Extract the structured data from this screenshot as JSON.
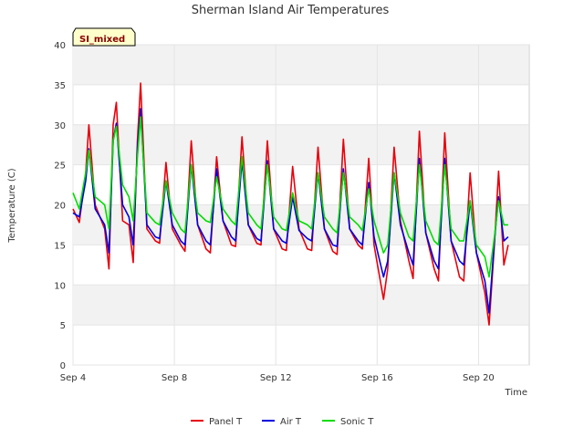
{
  "chart_data": {
    "type": "line",
    "title": "Sherman Island Air Temperatures",
    "xlabel": "Time",
    "ylabel": "Temperature (C)",
    "ylim": [
      0,
      40
    ],
    "yticks": [
      0,
      5,
      10,
      15,
      20,
      25,
      30,
      35,
      40
    ],
    "xlim": [
      "2023-09-04",
      "2023-09-22"
    ],
    "xticks": [
      {
        "date": "2023-09-04",
        "label": "Sep 4"
      },
      {
        "date": "2023-09-08",
        "label": "Sep 8"
      },
      {
        "date": "2023-09-12",
        "label": "Sep 12"
      },
      {
        "date": "2023-09-16",
        "label": "Sep 16"
      },
      {
        "date": "2023-09-20",
        "label": "Sep 20"
      }
    ],
    "grid": true,
    "legend_position": "bottom",
    "badge": "SI_mixed",
    "series": [
      {
        "name": "Panel T",
        "color": "#e8000b",
        "points": [
          [
            "2023-09-04 00:00",
            19.5
          ],
          [
            "2023-09-04 06:00",
            17.8
          ],
          [
            "2023-09-04 12:00",
            24.0
          ],
          [
            "2023-09-04 15:00",
            30.0
          ],
          [
            "2023-09-04 21:00",
            20.0
          ],
          [
            "2023-09-05 06:00",
            17.0
          ],
          [
            "2023-09-05 10:00",
            12.0
          ],
          [
            "2023-09-05 14:00",
            30.0
          ],
          [
            "2023-09-05 17:00",
            32.8
          ],
          [
            "2023-09-05 23:00",
            18.0
          ],
          [
            "2023-09-06 05:00",
            17.5
          ],
          [
            "2023-09-06 09:00",
            12.8
          ],
          [
            "2023-09-06 13:00",
            28.0
          ],
          [
            "2023-09-06 16:00",
            35.2
          ],
          [
            "2023-09-06 22:00",
            17.0
          ],
          [
            "2023-09-07 06:00",
            15.5
          ],
          [
            "2023-09-07 10:00",
            15.2
          ],
          [
            "2023-09-07 16:00",
            25.3
          ],
          [
            "2023-09-07 22:00",
            17.0
          ],
          [
            "2023-09-08 06:00",
            15.0
          ],
          [
            "2023-09-08 10:00",
            14.2
          ],
          [
            "2023-09-08 16:00",
            28.0
          ],
          [
            "2023-09-08 22:00",
            17.5
          ],
          [
            "2023-09-09 06:00",
            14.5
          ],
          [
            "2023-09-09 10:00",
            14.0
          ],
          [
            "2023-09-09 16:00",
            26.0
          ],
          [
            "2023-09-09 22:00",
            18.0
          ],
          [
            "2023-09-10 06:00",
            15.0
          ],
          [
            "2023-09-10 10:00",
            14.8
          ],
          [
            "2023-09-10 16:00",
            28.5
          ],
          [
            "2023-09-10 22:00",
            17.5
          ],
          [
            "2023-09-11 06:00",
            15.2
          ],
          [
            "2023-09-11 10:00",
            15.0
          ],
          [
            "2023-09-11 16:00",
            28.0
          ],
          [
            "2023-09-11 22:00",
            17.0
          ],
          [
            "2023-09-12 06:00",
            14.5
          ],
          [
            "2023-09-12 10:00",
            14.3
          ],
          [
            "2023-09-12 16:00",
            24.8
          ],
          [
            "2023-09-12 22:00",
            17.0
          ],
          [
            "2023-09-13 06:00",
            14.5
          ],
          [
            "2023-09-13 10:00",
            14.3
          ],
          [
            "2023-09-13 16:00",
            27.2
          ],
          [
            "2023-09-13 22:00",
            17.0
          ],
          [
            "2023-09-14 06:00",
            14.2
          ],
          [
            "2023-09-14 10:00",
            13.8
          ],
          [
            "2023-09-14 16:00",
            28.2
          ],
          [
            "2023-09-14 22:00",
            17.0
          ],
          [
            "2023-09-15 06:00",
            15.0
          ],
          [
            "2023-09-15 10:00",
            14.5
          ],
          [
            "2023-09-15 16:00",
            25.8
          ],
          [
            "2023-09-15 21:00",
            15.0
          ],
          [
            "2023-09-16 06:00",
            8.2
          ],
          [
            "2023-09-16 10:00",
            12.0
          ],
          [
            "2023-09-16 16:00",
            27.2
          ],
          [
            "2023-09-16 22:00",
            18.0
          ],
          [
            "2023-09-17 06:00",
            13.0
          ],
          [
            "2023-09-17 10:00",
            10.8
          ],
          [
            "2023-09-17 16:00",
            29.2
          ],
          [
            "2023-09-17 22:00",
            16.5
          ],
          [
            "2023-09-18 06:00",
            12.0
          ],
          [
            "2023-09-18 10:00",
            10.5
          ],
          [
            "2023-09-18 16:00",
            29.0
          ],
          [
            "2023-09-18 22:00",
            15.5
          ],
          [
            "2023-09-19 06:00",
            11.0
          ],
          [
            "2023-09-19 10:00",
            10.5
          ],
          [
            "2023-09-19 16:00",
            24.0
          ],
          [
            "2023-09-19 22:00",
            14.0
          ],
          [
            "2023-09-20 06:00",
            9.0
          ],
          [
            "2023-09-20 10:00",
            5.0
          ],
          [
            "2023-09-20 15:00",
            15.0
          ],
          [
            "2023-09-20 19:00",
            24.2
          ],
          [
            "2023-09-21 00:00",
            12.5
          ],
          [
            "2023-09-21 04:00",
            15.0
          ]
        ]
      },
      {
        "name": "Air T",
        "color": "#0000e0",
        "points": [
          [
            "2023-09-04 00:00",
            19.0
          ],
          [
            "2023-09-04 06:00",
            18.5
          ],
          [
            "2023-09-04 12:00",
            23.0
          ],
          [
            "2023-09-04 15:00",
            27.0
          ],
          [
            "2023-09-04 21:00",
            19.5
          ],
          [
            "2023-09-05 06:00",
            17.5
          ],
          [
            "2023-09-05 10:00",
            14.0
          ],
          [
            "2023-09-05 14:00",
            28.0
          ],
          [
            "2023-09-05 17:00",
            30.2
          ],
          [
            "2023-09-05 23:00",
            20.0
          ],
          [
            "2023-09-06 05:00",
            18.5
          ],
          [
            "2023-09-06 09:00",
            15.0
          ],
          [
            "2023-09-06 13:00",
            27.0
          ],
          [
            "2023-09-06 16:00",
            32.0
          ],
          [
            "2023-09-06 22:00",
            17.5
          ],
          [
            "2023-09-07 06:00",
            16.0
          ],
          [
            "2023-09-07 10:00",
            15.8
          ],
          [
            "2023-09-07 16:00",
            23.0
          ],
          [
            "2023-09-07 22:00",
            17.5
          ],
          [
            "2023-09-08 06:00",
            15.5
          ],
          [
            "2023-09-08 10:00",
            15.0
          ],
          [
            "2023-09-08 16:00",
            25.0
          ],
          [
            "2023-09-08 22:00",
            17.5
          ],
          [
            "2023-09-09 06:00",
            15.5
          ],
          [
            "2023-09-09 10:00",
            15.0
          ],
          [
            "2023-09-09 16:00",
            24.5
          ],
          [
            "2023-09-09 22:00",
            18.0
          ],
          [
            "2023-09-10 06:00",
            16.0
          ],
          [
            "2023-09-10 10:00",
            15.5
          ],
          [
            "2023-09-10 16:00",
            25.5
          ],
          [
            "2023-09-10 22:00",
            17.5
          ],
          [
            "2023-09-11 06:00",
            15.8
          ],
          [
            "2023-09-11 10:00",
            15.5
          ],
          [
            "2023-09-11 16:00",
            25.5
          ],
          [
            "2023-09-11 22:00",
            17.0
          ],
          [
            "2023-09-12 06:00",
            15.5
          ],
          [
            "2023-09-12 10:00",
            15.2
          ],
          [
            "2023-09-12 16:00",
            21.0
          ],
          [
            "2023-09-12 22:00",
            16.8
          ],
          [
            "2023-09-13 06:00",
            15.8
          ],
          [
            "2023-09-13 10:00",
            15.5
          ],
          [
            "2023-09-13 16:00",
            24.0
          ],
          [
            "2023-09-13 22:00",
            17.0
          ],
          [
            "2023-09-14 06:00",
            15.0
          ],
          [
            "2023-09-14 10:00",
            14.8
          ],
          [
            "2023-09-14 16:00",
            24.5
          ],
          [
            "2023-09-14 22:00",
            17.0
          ],
          [
            "2023-09-15 06:00",
            15.5
          ],
          [
            "2023-09-15 10:00",
            15.0
          ],
          [
            "2023-09-15 16:00",
            22.8
          ],
          [
            "2023-09-15 21:00",
            16.0
          ],
          [
            "2023-09-16 06:00",
            11.0
          ],
          [
            "2023-09-16 10:00",
            13.0
          ],
          [
            "2023-09-16 16:00",
            24.0
          ],
          [
            "2023-09-16 22:00",
            17.5
          ],
          [
            "2023-09-17 06:00",
            14.0
          ],
          [
            "2023-09-17 10:00",
            12.5
          ],
          [
            "2023-09-17 16:00",
            25.8
          ],
          [
            "2023-09-17 22:00",
            16.5
          ],
          [
            "2023-09-18 06:00",
            13.0
          ],
          [
            "2023-09-18 10:00",
            12.0
          ],
          [
            "2023-09-18 16:00",
            25.8
          ],
          [
            "2023-09-18 22:00",
            15.5
          ],
          [
            "2023-09-19 06:00",
            13.0
          ],
          [
            "2023-09-19 10:00",
            12.5
          ],
          [
            "2023-09-19 16:00",
            20.5
          ],
          [
            "2023-09-19 22:00",
            14.0
          ],
          [
            "2023-09-20 06:00",
            10.5
          ],
          [
            "2023-09-20 10:00",
            6.5
          ],
          [
            "2023-09-20 15:00",
            15.5
          ],
          [
            "2023-09-20 19:00",
            21.0
          ],
          [
            "2023-09-21 00:00",
            15.5
          ],
          [
            "2023-09-21 04:00",
            16.0
          ]
        ]
      },
      {
        "name": "Sonic T",
        "color": "#00dd00",
        "points": [
          [
            "2023-09-04 00:00",
            21.5
          ],
          [
            "2023-09-04 06:00",
            19.5
          ],
          [
            "2023-09-04 12:00",
            24.0
          ],
          [
            "2023-09-04 15:00",
            26.8
          ],
          [
            "2023-09-04 21:00",
            21.0
          ],
          [
            "2023-09-05 06:00",
            20.0
          ],
          [
            "2023-09-05 10:00",
            17.0
          ],
          [
            "2023-09-05 14:00",
            28.0
          ],
          [
            "2023-09-05 17:00",
            29.8
          ],
          [
            "2023-09-05 23:00",
            22.5
          ],
          [
            "2023-09-06 05:00",
            21.0
          ],
          [
            "2023-09-06 09:00",
            18.0
          ],
          [
            "2023-09-06 13:00",
            26.0
          ],
          [
            "2023-09-06 16:00",
            31.0
          ],
          [
            "2023-09-06 22:00",
            19.0
          ],
          [
            "2023-09-07 06:00",
            17.8
          ],
          [
            "2023-09-07 10:00",
            17.5
          ],
          [
            "2023-09-07 16:00",
            23.0
          ],
          [
            "2023-09-07 22:00",
            19.0
          ],
          [
            "2023-09-08 06:00",
            17.0
          ],
          [
            "2023-09-08 10:00",
            16.5
          ],
          [
            "2023-09-08 16:00",
            25.0
          ],
          [
            "2023-09-08 22:00",
            19.0
          ],
          [
            "2023-09-09 06:00",
            18.0
          ],
          [
            "2023-09-09 10:00",
            17.8
          ],
          [
            "2023-09-09 16:00",
            23.5
          ],
          [
            "2023-09-09 22:00",
            19.5
          ],
          [
            "2023-09-10 06:00",
            18.0
          ],
          [
            "2023-09-10 10:00",
            17.5
          ],
          [
            "2023-09-10 16:00",
            26.0
          ],
          [
            "2023-09-10 22:00",
            19.0
          ],
          [
            "2023-09-11 06:00",
            17.5
          ],
          [
            "2023-09-11 10:00",
            17.0
          ],
          [
            "2023-09-11 16:00",
            25.0
          ],
          [
            "2023-09-11 22:00",
            18.5
          ],
          [
            "2023-09-12 06:00",
            17.0
          ],
          [
            "2023-09-12 10:00",
            16.8
          ],
          [
            "2023-09-12 16:00",
            21.5
          ],
          [
            "2023-09-12 22:00",
            18.0
          ],
          [
            "2023-09-13 06:00",
            17.5
          ],
          [
            "2023-09-13 10:00",
            17.0
          ],
          [
            "2023-09-13 16:00",
            24.0
          ],
          [
            "2023-09-13 22:00",
            18.5
          ],
          [
            "2023-09-14 06:00",
            17.0
          ],
          [
            "2023-09-14 10:00",
            16.5
          ],
          [
            "2023-09-14 16:00",
            24.0
          ],
          [
            "2023-09-14 22:00",
            18.5
          ],
          [
            "2023-09-15 06:00",
            17.5
          ],
          [
            "2023-09-15 10:00",
            16.8
          ],
          [
            "2023-09-15 16:00",
            22.0
          ],
          [
            "2023-09-15 21:00",
            18.0
          ],
          [
            "2023-09-16 06:00",
            14.0
          ],
          [
            "2023-09-16 10:00",
            15.0
          ],
          [
            "2023-09-16 16:00",
            24.0
          ],
          [
            "2023-09-16 22:00",
            19.0
          ],
          [
            "2023-09-17 06:00",
            16.0
          ],
          [
            "2023-09-17 10:00",
            15.5
          ],
          [
            "2023-09-17 16:00",
            25.0
          ],
          [
            "2023-09-17 22:00",
            18.0
          ],
          [
            "2023-09-18 06:00",
            15.5
          ],
          [
            "2023-09-18 10:00",
            15.0
          ],
          [
            "2023-09-18 16:00",
            25.0
          ],
          [
            "2023-09-18 22:00",
            17.0
          ],
          [
            "2023-09-19 06:00",
            15.5
          ],
          [
            "2023-09-19 10:00",
            15.5
          ],
          [
            "2023-09-19 16:00",
            20.5
          ],
          [
            "2023-09-19 22:00",
            15.0
          ],
          [
            "2023-09-20 06:00",
            13.5
          ],
          [
            "2023-09-20 10:00",
            11.0
          ],
          [
            "2023-09-20 15:00",
            16.0
          ],
          [
            "2023-09-20 19:00",
            20.5
          ],
          [
            "2023-09-21 00:00",
            17.5
          ],
          [
            "2023-09-21 04:00",
            17.5
          ]
        ]
      }
    ]
  }
}
